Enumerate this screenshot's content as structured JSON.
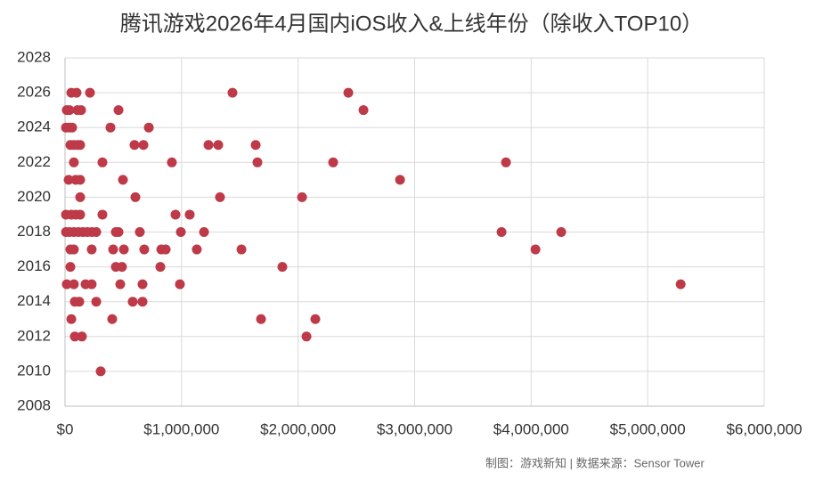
{
  "chart_data": {
    "type": "scatter",
    "title": "腾讯游戏2026年4月国内iOS收入&上线年份（除收入TOP10）",
    "footnote": "制图：游戏新知  |   数据来源：Sensor Tower",
    "color": "#be3a48",
    "grid": true,
    "xlim": [
      0,
      6000000
    ],
    "ylim": [
      2008,
      2028
    ],
    "xticks": [
      {
        "value": 0,
        "label": "$0"
      },
      {
        "value": 1000000,
        "label": "$1,000,000"
      },
      {
        "value": 2000000,
        "label": "$2,000,000"
      },
      {
        "value": 3000000,
        "label": "$3,000,000"
      },
      {
        "value": 4000000,
        "label": "$4,000,000"
      },
      {
        "value": 5000000,
        "label": "$5,000,000"
      },
      {
        "value": 6000000,
        "label": "$6,000,000"
      }
    ],
    "yticks": [
      2008,
      2010,
      2012,
      2014,
      2016,
      2018,
      2020,
      2022,
      2024,
      2026,
      2028
    ],
    "x": [
      54000,
      99000,
      214000,
      1437000,
      2431000,
      15000,
      38000,
      107000,
      138000,
      459000,
      2561000,
      8000,
      38000,
      61000,
      390000,
      719000,
      46000,
      76000,
      107000,
      130000,
      596000,
      673000,
      1231000,
      1315000,
      1636000,
      76000,
      321000,
      917000,
      1651000,
      2301000,
      3784000,
      31000,
      92000,
      130000,
      497000,
      2875000,
      130000,
      604000,
      1330000,
      2034000,
      8000,
      54000,
      92000,
      130000,
      321000,
      948000,
      1070000,
      8000,
      38000,
      76000,
      115000,
      153000,
      191000,
      229000,
      268000,
      436000,
      459000,
      642000,
      994000,
      1193000,
      3746000,
      4258000,
      46000,
      76000,
      229000,
      413000,
      505000,
      680000,
      826000,
      864000,
      1131000,
      1514000,
      4037000,
      46000,
      436000,
      489000,
      818000,
      1865000,
      15000,
      76000,
      176000,
      229000,
      474000,
      665000,
      986000,
      5283000,
      84000,
      122000,
      268000,
      581000,
      665000,
      54000,
      405000,
      1682000,
      2148000,
      84000,
      145000,
      2072000,
      306000
    ],
    "y": [
      2026,
      2026,
      2026,
      2026,
      2026,
      2025,
      2025,
      2025,
      2025,
      2025,
      2025,
      2024,
      2024,
      2024,
      2024,
      2024,
      2023,
      2023,
      2023,
      2023,
      2023,
      2023,
      2023,
      2023,
      2023,
      2022,
      2022,
      2022,
      2022,
      2022,
      2022,
      2021,
      2021,
      2021,
      2021,
      2021,
      2020,
      2020,
      2020,
      2020,
      2019,
      2019,
      2019,
      2019,
      2019,
      2019,
      2019,
      2018,
      2018,
      2018,
      2018,
      2018,
      2018,
      2018,
      2018,
      2018,
      2018,
      2018,
      2018,
      2018,
      2018,
      2018,
      2017,
      2017,
      2017,
      2017,
      2017,
      2017,
      2017,
      2017,
      2017,
      2017,
      2017,
      2016,
      2016,
      2016,
      2016,
      2016,
      2015,
      2015,
      2015,
      2015,
      2015,
      2015,
      2015,
      2015,
      2014,
      2014,
      2014,
      2014,
      2014,
      2013,
      2013,
      2013,
      2013,
      2012,
      2012,
      2012,
      2010
    ]
  }
}
